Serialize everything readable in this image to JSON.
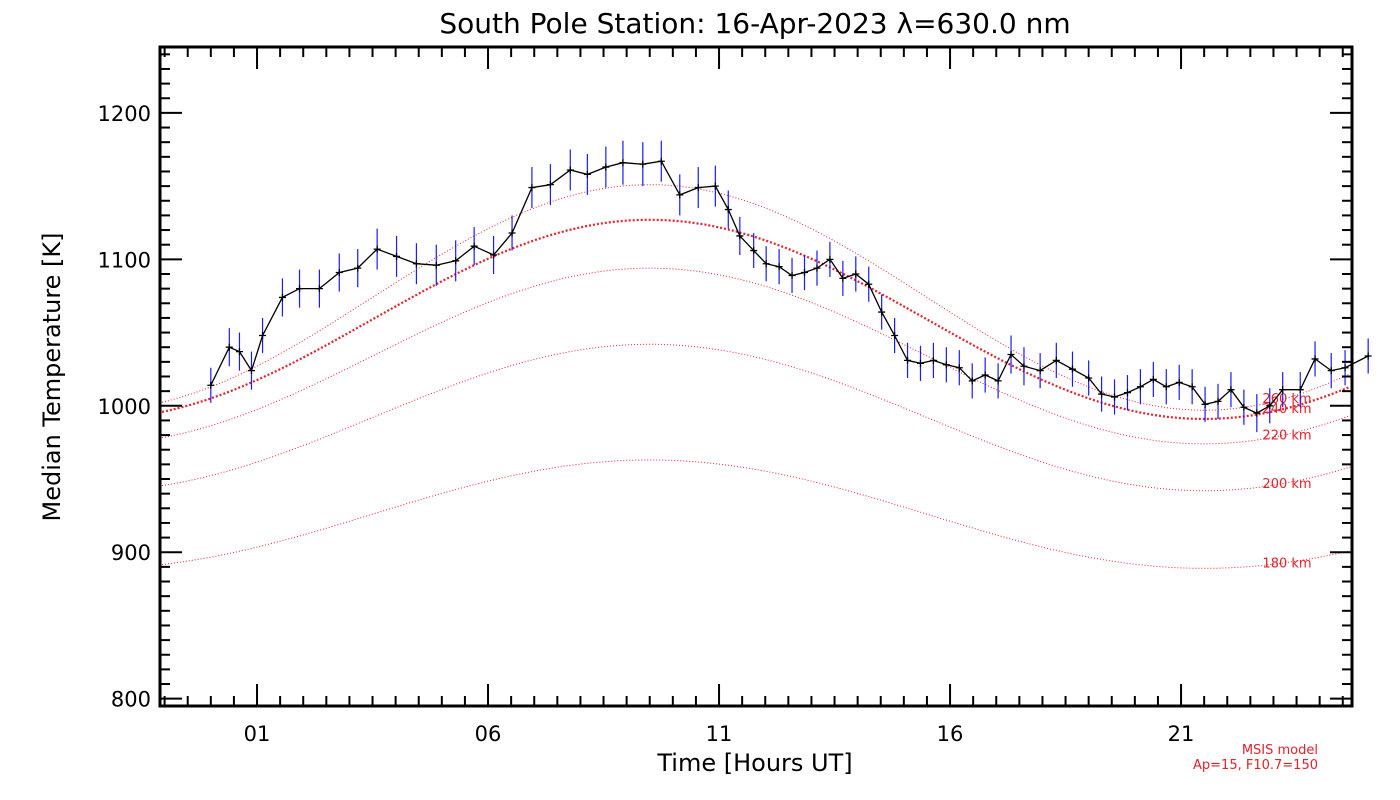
{
  "chart_data": {
    "type": "line",
    "title": "South Pole Station: 16-Apr-2023 λ=630.0 nm",
    "xlabel": "Time [Hours UT]",
    "ylabel": "Median Temperature [K]",
    "xlim": [
      -2.1,
      23.7
    ],
    "ylim": [
      795,
      1245
    ],
    "x_ticks": [
      0,
      5,
      10,
      15,
      20
    ],
    "x_tick_labels": [
      "01",
      "06",
      "11",
      "16",
      "21"
    ],
    "y_ticks": [
      800,
      900,
      1000,
      1100,
      1200
    ],
    "y_tick_labels": [
      "800",
      "900",
      "1000",
      "1100",
      "1200"
    ],
    "grid": false,
    "measured": {
      "name": "Median Temperature",
      "points": [
        {
          "x": -1.0,
          "y": 1014,
          "err": 12
        },
        {
          "x": -0.6,
          "y": 1040,
          "err": 13
        },
        {
          "x": -0.38,
          "y": 1037,
          "err": 13
        },
        {
          "x": -0.12,
          "y": 1024,
          "err": 13
        },
        {
          "x": 0.12,
          "y": 1048,
          "err": 12
        },
        {
          "x": 0.55,
          "y": 1074,
          "err": 13
        },
        {
          "x": 0.92,
          "y": 1080,
          "err": 13
        },
        {
          "x": 1.35,
          "y": 1080,
          "err": 13
        },
        {
          "x": 1.78,
          "y": 1091,
          "err": 13
        },
        {
          "x": 2.18,
          "y": 1094,
          "err": 13
        },
        {
          "x": 2.6,
          "y": 1107,
          "err": 14
        },
        {
          "x": 3.02,
          "y": 1102,
          "err": 14
        },
        {
          "x": 3.45,
          "y": 1097,
          "err": 14
        },
        {
          "x": 3.88,
          "y": 1096,
          "err": 14
        },
        {
          "x": 4.3,
          "y": 1099,
          "err": 14
        },
        {
          "x": 4.7,
          "y": 1109,
          "err": 13
        },
        {
          "x": 5.12,
          "y": 1103,
          "err": 13
        },
        {
          "x": 5.52,
          "y": 1118,
          "err": 12
        },
        {
          "x": 5.95,
          "y": 1149,
          "err": 14
        },
        {
          "x": 6.35,
          "y": 1151,
          "err": 14
        },
        {
          "x": 6.78,
          "y": 1161,
          "err": 14
        },
        {
          "x": 7.15,
          "y": 1158,
          "err": 14
        },
        {
          "x": 7.55,
          "y": 1163,
          "err": 14
        },
        {
          "x": 7.92,
          "y": 1166,
          "err": 15
        },
        {
          "x": 8.35,
          "y": 1165,
          "err": 15
        },
        {
          "x": 8.75,
          "y": 1167,
          "err": 14
        },
        {
          "x": 9.15,
          "y": 1144,
          "err": 14
        },
        {
          "x": 9.55,
          "y": 1149,
          "err": 14
        },
        {
          "x": 9.92,
          "y": 1150,
          "err": 14
        },
        {
          "x": 10.2,
          "y": 1134,
          "err": 13
        },
        {
          "x": 10.45,
          "y": 1116,
          "err": 13
        },
        {
          "x": 10.75,
          "y": 1106,
          "err": 12
        },
        {
          "x": 11.02,
          "y": 1097,
          "err": 12
        },
        {
          "x": 11.3,
          "y": 1095,
          "err": 12
        },
        {
          "x": 11.58,
          "y": 1089,
          "err": 12
        },
        {
          "x": 11.85,
          "y": 1091,
          "err": 12
        },
        {
          "x": 12.12,
          "y": 1094,
          "err": 12
        },
        {
          "x": 12.4,
          "y": 1100,
          "err": 12
        },
        {
          "x": 12.68,
          "y": 1087,
          "err": 12
        },
        {
          "x": 12.96,
          "y": 1090,
          "err": 12
        },
        {
          "x": 13.24,
          "y": 1083,
          "err": 12
        },
        {
          "x": 13.52,
          "y": 1064,
          "err": 12
        },
        {
          "x": 13.8,
          "y": 1048,
          "err": 12
        },
        {
          "x": 14.08,
          "y": 1031,
          "err": 12
        },
        {
          "x": 14.36,
          "y": 1029,
          "err": 12
        },
        {
          "x": 14.64,
          "y": 1031,
          "err": 12
        },
        {
          "x": 14.92,
          "y": 1028,
          "err": 12
        },
        {
          "x": 15.2,
          "y": 1026,
          "err": 12
        },
        {
          "x": 15.48,
          "y": 1017,
          "err": 12
        },
        {
          "x": 15.76,
          "y": 1021,
          "err": 12
        },
        {
          "x": 16.04,
          "y": 1017,
          "err": 12
        },
        {
          "x": 16.32,
          "y": 1035,
          "err": 13
        },
        {
          "x": 16.6,
          "y": 1027,
          "err": 13
        },
        {
          "x": 16.95,
          "y": 1024,
          "err": 12
        },
        {
          "x": 17.3,
          "y": 1031,
          "err": 12
        },
        {
          "x": 17.65,
          "y": 1025,
          "err": 12
        },
        {
          "x": 18.0,
          "y": 1019,
          "err": 12
        },
        {
          "x": 18.28,
          "y": 1008,
          "err": 12
        },
        {
          "x": 18.56,
          "y": 1006,
          "err": 12
        },
        {
          "x": 18.84,
          "y": 1009,
          "err": 12
        },
        {
          "x": 19.12,
          "y": 1013,
          "err": 12
        },
        {
          "x": 19.4,
          "y": 1018,
          "err": 12
        },
        {
          "x": 19.68,
          "y": 1013,
          "err": 12
        },
        {
          "x": 19.96,
          "y": 1016,
          "err": 12
        },
        {
          "x": 20.24,
          "y": 1013,
          "err": 12
        },
        {
          "x": 20.52,
          "y": 1001,
          "err": 12
        },
        {
          "x": 20.8,
          "y": 1003,
          "err": 12
        },
        {
          "x": 21.08,
          "y": 1011,
          "err": 12
        },
        {
          "x": 21.36,
          "y": 999,
          "err": 12
        },
        {
          "x": 21.64,
          "y": 995,
          "err": 13
        },
        {
          "x": 21.92,
          "y": 1000,
          "err": 12
        },
        {
          "x": 22.2,
          "y": 1011,
          "err": 12
        },
        {
          "x": 22.58,
          "y": 1011,
          "err": 12
        },
        {
          "x": 22.9,
          "y": 1032,
          "err": 12
        },
        {
          "x": 23.25,
          "y": 1024,
          "err": 12
        },
        {
          "x": 23.55,
          "y": 1026,
          "err": 12
        },
        {
          "x": 24.05,
          "y": 1034,
          "err": 12
        }
      ]
    },
    "model_series": [
      {
        "name": "180 km",
        "mean": 926,
        "amplitude": 37,
        "peak_hour": 8.5,
        "period_hours": 24
      },
      {
        "name": "200 km",
        "mean": 992,
        "amplitude": 50,
        "peak_hour": 8.5,
        "period_hours": 24
      },
      {
        "name": "220 km",
        "mean": 1034,
        "amplitude": 60,
        "peak_hour": 8.5,
        "period_hours": 24
      },
      {
        "name": "240 km",
        "mean": 1059,
        "amplitude": 68,
        "peak_hour": 8.5,
        "period_hours": 24,
        "emphasized": true
      },
      {
        "name": "260 km",
        "mean": 1074,
        "amplitude": 77,
        "peak_hour": 8.5,
        "period_hours": 24
      }
    ],
    "model_note": [
      "MSIS model",
      "Ap=15, F10.7=150"
    ]
  },
  "colors": {
    "axes": "#000000",
    "measured_line": "#000000",
    "error_bars": "#1a1aff",
    "model": "#e8202a"
  }
}
